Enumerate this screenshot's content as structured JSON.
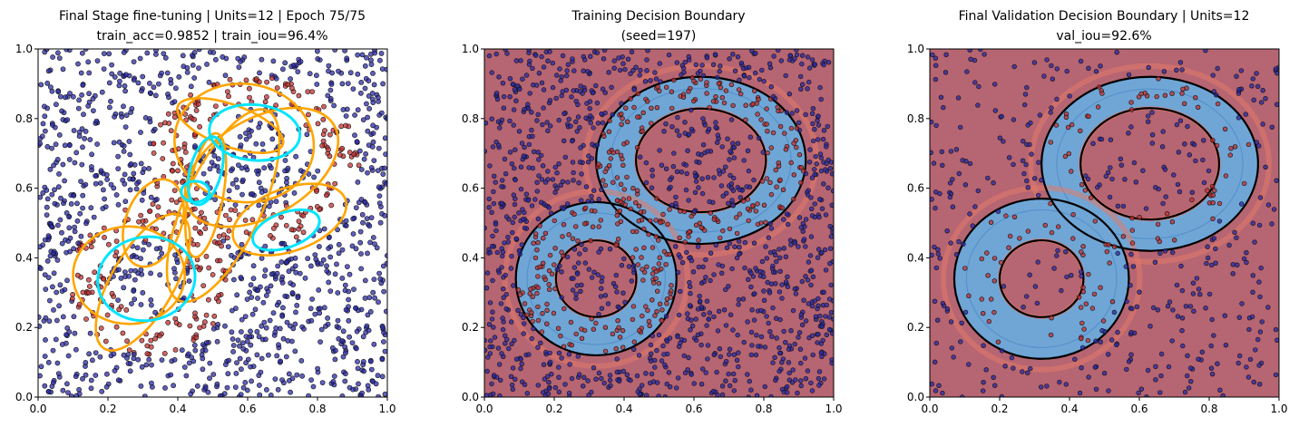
{
  "figure": {
    "background": "#ffffff",
    "colors": {
      "class0_point": "#2a2aa8",
      "class1_point": "#c43030",
      "stage_ellipse": "#ffa500",
      "fine_ellipse": "#00e5ff",
      "boundary": "#000000",
      "outside_fill": "#b66572",
      "inside_fill": "#6fa6d6"
    }
  },
  "chart_data": [
    {
      "type": "scatter",
      "title": "Final Stage fine-tuning | Units=12 | Epoch 75/75",
      "subtitle": "train_acc=0.9852 | train_iou=96.4%",
      "xlabel": "",
      "ylabel": "",
      "xlim": [
        0.0,
        1.0
      ],
      "ylim": [
        0.0,
        1.0
      ],
      "xticks": [
        "0.0",
        "0.2",
        "0.4",
        "0.6",
        "0.8",
        "1.0"
      ],
      "yticks": [
        "0.0",
        "0.2",
        "0.4",
        "0.6",
        "0.8",
        "1.0"
      ],
      "series": [],
      "stage_ellipses": [
        {
          "cx": 0.59,
          "cy": 0.73,
          "rx": 0.2,
          "ry": 0.17,
          "angle": -8
        },
        {
          "cx": 0.3,
          "cy": 0.33,
          "rx": 0.22,
          "ry": 0.09,
          "angle": 60
        },
        {
          "cx": 0.26,
          "cy": 0.35,
          "rx": 0.16,
          "ry": 0.14,
          "angle": 0
        },
        {
          "cx": 0.53,
          "cy": 0.55,
          "rx": 0.3,
          "ry": 0.11,
          "angle": 65
        },
        {
          "cx": 0.72,
          "cy": 0.51,
          "rx": 0.17,
          "ry": 0.09,
          "angle": 20
        },
        {
          "cx": 0.64,
          "cy": 0.66,
          "rx": 0.24,
          "ry": 0.14,
          "angle": 30
        },
        {
          "cx": 0.48,
          "cy": 0.58,
          "rx": 0.18,
          "ry": 0.05,
          "angle": 80
        },
        {
          "cx": 0.33,
          "cy": 0.5,
          "rx": 0.13,
          "ry": 0.08,
          "angle": 70
        },
        {
          "cx": 0.55,
          "cy": 0.78,
          "rx": 0.16,
          "ry": 0.06,
          "angle": -20
        }
      ],
      "fine_ellipses": [
        {
          "cx": 0.31,
          "cy": 0.34,
          "rx": 0.14,
          "ry": 0.12,
          "angle": 10
        },
        {
          "cx": 0.62,
          "cy": 0.76,
          "rx": 0.13,
          "ry": 0.08,
          "angle": -5
        },
        {
          "cx": 0.71,
          "cy": 0.48,
          "rx": 0.1,
          "ry": 0.05,
          "angle": 20
        },
        {
          "cx": 0.48,
          "cy": 0.65,
          "rx": 0.1,
          "ry": 0.045,
          "angle": 75
        },
        {
          "cx": 0.45,
          "cy": 0.59,
          "rx": 0.04,
          "ry": 0.03,
          "angle": 0
        }
      ]
    },
    {
      "type": "heatmap",
      "title": "Training Decision Boundary",
      "subtitle": "(seed=197)",
      "xlabel": "",
      "ylabel": "",
      "xlim": [
        0.0,
        1.0
      ],
      "ylim": [
        0.0,
        1.0
      ],
      "xticks": [
        "0.0",
        "0.2",
        "0.4",
        "0.6",
        "0.8",
        "1.0"
      ],
      "yticks": [
        "0.0",
        "0.2",
        "0.4",
        "0.6",
        "0.8",
        "1.0"
      ],
      "series": []
    },
    {
      "type": "heatmap",
      "title": "Final Validation Decision Boundary | Units=12",
      "subtitle": "val_iou=92.6%",
      "xlabel": "",
      "ylabel": "",
      "xlim": [
        0.0,
        1.0
      ],
      "ylim": [
        0.0,
        1.0
      ],
      "xticks": [
        "0.0",
        "0.2",
        "0.4",
        "0.6",
        "0.8",
        "1.0"
      ],
      "yticks": [
        "0.0",
        "0.2",
        "0.4",
        "0.6",
        "0.8",
        "1.0"
      ],
      "series": []
    }
  ]
}
